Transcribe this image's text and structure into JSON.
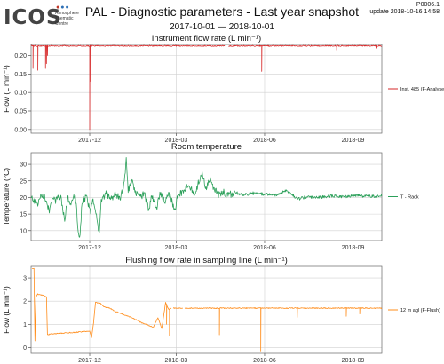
{
  "header": {
    "logo_text": "ICOS",
    "logo_subtitle": [
      "Atmosphere",
      "Thematic",
      "Centre"
    ],
    "title": "PAL - Diagnostic parameters - Last year snapshot",
    "date_range": "2017-10-01 — 2018-10-01",
    "doc_id": "P0006.1",
    "update": "update   2018-10-16 14:58"
  },
  "chart_data": [
    {
      "type": "line",
      "title": "Instrument flow rate (L min⁻¹)",
      "ylabel": "Flow (L min⁻¹)",
      "xlim": [
        "2017-10-01",
        "2018-10-01"
      ],
      "xticks": [
        "2017-12",
        "2018-03",
        "2018-06",
        "2018-09"
      ],
      "ylim": [
        -0.01,
        0.23
      ],
      "yticks": [
        "0.00",
        "0.05",
        "0.10",
        "0.15",
        "0.20"
      ],
      "grid": true,
      "legend": "right",
      "color": "#d62728",
      "series": [
        {
          "name": "Inst. 485 (F-Analyse)",
          "baseline": 0.226,
          "gaps": [
            [
              "2018-04-21",
              "2018-04-24"
            ]
          ],
          "spikes": [
            {
              "x": "2017-10-03",
              "y": 0.165
            },
            {
              "x": "2017-10-08",
              "y": 0.16
            },
            {
              "x": "2017-10-16",
              "y": 0.165
            },
            {
              "x": "2017-10-17",
              "y": 0.178
            },
            {
              "x": "2017-10-18",
              "y": 0.2
            },
            {
              "x": "2017-12-01",
              "y": 0.0
            },
            {
              "x": "2017-12-02",
              "y": 0.13
            },
            {
              "x": "2018-05-29",
              "y": 0.157
            },
            {
              "x": "2018-08-15",
              "y": 0.215
            },
            {
              "x": "2018-09-25",
              "y": 0.22
            }
          ]
        }
      ]
    },
    {
      "type": "line",
      "title": "Room temperature",
      "ylabel": "Temperature (°C)",
      "xlim": [
        "2017-10-01",
        "2018-10-01"
      ],
      "xticks": [
        "2017-12",
        "2018-03",
        "2018-06",
        "2018-09"
      ],
      "ylim": [
        7,
        33.5
      ],
      "yticks": [
        "10",
        "15",
        "20",
        "25",
        "30"
      ],
      "grid": true,
      "legend": "right",
      "color": "#2ca05a",
      "series": [
        {
          "name": "T - Rack",
          "points": [
            [
              "2017-10-01",
              20
            ],
            [
              "2017-10-08",
              18
            ],
            [
              "2017-10-12",
              21
            ],
            [
              "2017-10-16",
              19.5
            ],
            [
              "2017-10-20",
              16
            ],
            [
              "2017-10-23",
              20.5
            ],
            [
              "2017-10-27",
              19
            ],
            [
              "2017-11-01",
              20.5
            ],
            [
              "2017-11-05",
              13
            ],
            [
              "2017-11-08",
              20
            ],
            [
              "2017-11-12",
              18
            ],
            [
              "2017-11-16",
              21
            ],
            [
              "2017-11-19",
              10
            ],
            [
              "2017-11-21",
              8
            ],
            [
              "2017-11-23",
              19
            ],
            [
              "2017-11-28",
              20
            ],
            [
              "2017-12-02",
              15
            ],
            [
              "2017-12-04",
              20
            ],
            [
              "2017-12-09",
              13
            ],
            [
              "2017-12-11",
              9
            ],
            [
              "2017-12-13",
              19
            ],
            [
              "2017-12-18",
              21
            ],
            [
              "2017-12-23",
              19.5
            ],
            [
              "2017-12-28",
              21
            ],
            [
              "2018-01-02",
              20
            ],
            [
              "2018-01-06",
              24
            ],
            [
              "2018-01-08",
              32.5
            ],
            [
              "2018-01-10",
              22
            ],
            [
              "2018-01-14",
              26
            ],
            [
              "2018-01-17",
              21.5
            ],
            [
              "2018-01-22",
              20
            ],
            [
              "2018-01-27",
              21
            ],
            [
              "2018-02-01",
              16
            ],
            [
              "2018-02-03",
              20.5
            ],
            [
              "2018-02-09",
              17
            ],
            [
              "2018-02-12",
              21
            ],
            [
              "2018-02-18",
              19
            ],
            [
              "2018-02-22",
              21
            ],
            [
              "2018-02-28",
              16
            ],
            [
              "2018-03-02",
              20
            ],
            [
              "2018-03-08",
              22
            ],
            [
              "2018-03-14",
              24
            ],
            [
              "2018-03-20",
              21
            ],
            [
              "2018-03-25",
              25
            ],
            [
              "2018-03-28",
              27
            ],
            [
              "2018-04-01",
              23
            ],
            [
              "2018-04-05",
              26
            ],
            [
              "2018-04-09",
              22.5
            ],
            [
              "2018-04-14",
              21
            ],
            [
              "2018-04-19",
              22
            ],
            [
              "2018-04-23",
              20.5
            ],
            [
              "2018-05-01",
              21.5
            ],
            [
              "2018-05-10",
              20.8
            ],
            [
              "2018-05-20",
              21.3
            ],
            [
              "2018-06-01",
              21
            ],
            [
              "2018-06-15",
              20.7
            ],
            [
              "2018-06-22",
              22
            ],
            [
              "2018-06-28",
              21.5
            ],
            [
              "2018-07-05",
              19.5
            ],
            [
              "2018-07-15",
              20.2
            ],
            [
              "2018-07-28",
              20
            ],
            [
              "2018-08-10",
              20.5
            ],
            [
              "2018-08-25",
              20.2
            ],
            [
              "2018-09-05",
              20.6
            ],
            [
              "2018-09-20",
              20.3
            ],
            [
              "2018-10-01",
              20.5
            ]
          ]
        }
      ]
    },
    {
      "type": "line",
      "title": "Flushing flow rate in sampling line (L min⁻¹)",
      "ylabel": "Flow (L min⁻¹)",
      "xlim": [
        "2017-10-01",
        "2018-10-01"
      ],
      "xticks": [
        "2017-12",
        "2018-03",
        "2018-06",
        "2018-09"
      ],
      "ylim": [
        -0.25,
        3.5
      ],
      "yticks": [
        "0",
        "1",
        "2",
        "3"
      ],
      "grid": true,
      "legend": "right",
      "color": "#ff8c1a",
      "series": [
        {
          "name": "12 m agl (F-Flush)",
          "points": [
            [
              "2017-10-02",
              3.4
            ],
            [
              "2017-10-04",
              3.4
            ],
            [
              "2017-10-05",
              0.3
            ],
            [
              "2017-10-06",
              2.2
            ],
            [
              "2017-10-08",
              2.3
            ],
            [
              "2017-10-14",
              2.25
            ],
            [
              "2017-10-17",
              2.2
            ],
            [
              "2017-10-18",
              0.55
            ],
            [
              "2017-10-25",
              0.6
            ],
            [
              "2017-11-01",
              0.62
            ],
            [
              "2017-11-15",
              0.65
            ],
            [
              "2017-11-28",
              0.7
            ],
            [
              "2017-12-01",
              0.7
            ],
            [
              "2017-12-03",
              0.45
            ],
            [
              "2017-12-05",
              1.05
            ],
            [
              "2017-12-07",
              1.95
            ],
            [
              "2017-12-12",
              1.9
            ],
            [
              "2017-12-16",
              1.75
            ],
            [
              "2017-12-22",
              1.7
            ],
            [
              "2017-12-28",
              1.55
            ],
            [
              "2018-01-04",
              1.45
            ],
            [
              "2018-01-10",
              1.35
            ],
            [
              "2018-01-18",
              1.2
            ],
            [
              "2018-01-25",
              1.05
            ],
            [
              "2018-02-01",
              0.95
            ],
            [
              "2018-02-05",
              0.85
            ],
            [
              "2018-02-10",
              1.3
            ],
            [
              "2018-02-14",
              0.8
            ],
            [
              "2018-02-18",
              1.95
            ],
            [
              "2018-02-21",
              1.65
            ],
            [
              "2018-02-24",
              1.7
            ],
            [
              "2018-03-15",
              1.7
            ],
            [
              "2018-04-05",
              1.7
            ],
            [
              "2018-04-25",
              1.7
            ],
            [
              "2018-05-20",
              1.7
            ],
            [
              "2018-06-20",
              1.7
            ],
            [
              "2018-07-20",
              1.7
            ],
            [
              "2018-08-20",
              1.7
            ],
            [
              "2018-09-20",
              1.7
            ],
            [
              "2018-10-01",
              1.7
            ]
          ],
          "dips": [
            {
              "x": "2018-02-19",
              "y": 1.0
            },
            {
              "x": "2018-02-22",
              "y": 0.5
            },
            {
              "x": "2018-04-15",
              "y": 0.55
            },
            {
              "x": "2018-05-28",
              "y": -0.15
            },
            {
              "x": "2018-07-05",
              "y": 1.3
            },
            {
              "x": "2018-08-25",
              "y": 1.35
            },
            {
              "x": "2018-09-08",
              "y": 1.45
            }
          ],
          "gaps": [
            [
              "2018-02-24",
              "2018-02-26"
            ],
            [
              "2018-03-08",
              "2018-03-10"
            ]
          ]
        }
      ]
    }
  ]
}
